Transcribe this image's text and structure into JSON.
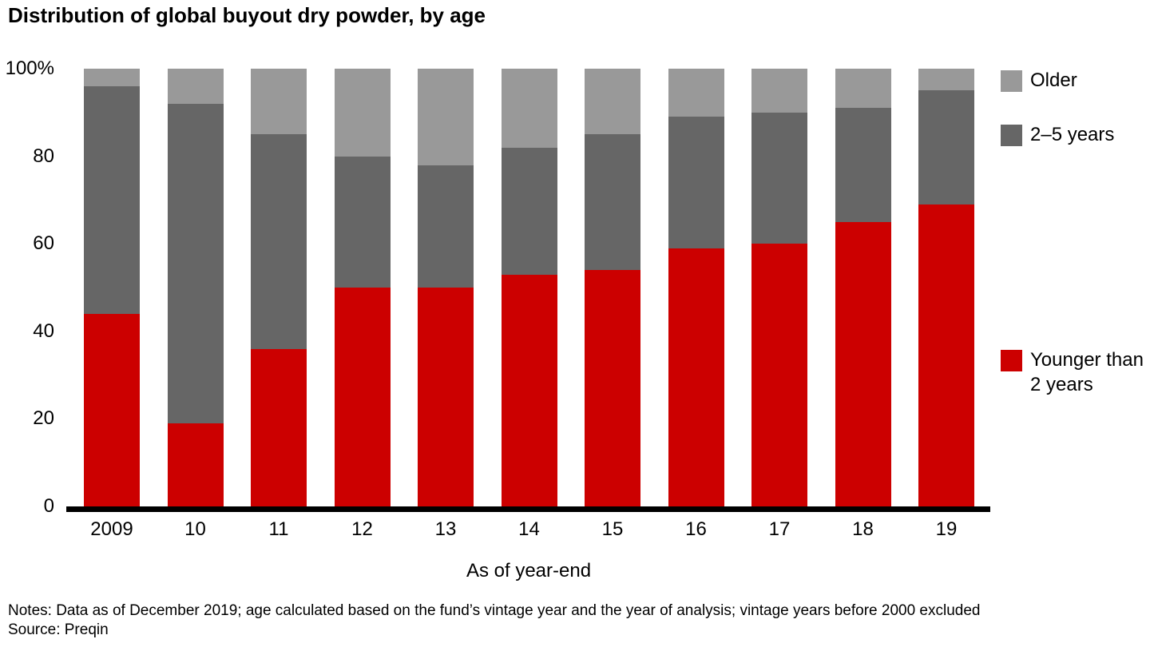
{
  "title": "Distribution of global buyout dry powder, by age",
  "chart_data": {
    "type": "bar",
    "stacked": true,
    "title": "Distribution of global buyout dry powder, by age",
    "xlabel": "As of year-end",
    "ylabel": "",
    "ylim": [
      0,
      100
    ],
    "grid": false,
    "legend_position": "right",
    "categories": [
      "2009",
      "10",
      "11",
      "12",
      "13",
      "14",
      "15",
      "16",
      "17",
      "18",
      "19"
    ],
    "series": [
      {
        "name": "Younger than 2 years",
        "color": "#cc0000",
        "values": [
          44,
          19,
          36,
          50,
          50,
          53,
          54,
          59,
          60,
          65,
          69
        ]
      },
      {
        "name": "2–5 years",
        "color": "#666666",
        "values": [
          52,
          73,
          49,
          30,
          28,
          29,
          31,
          30,
          30,
          26,
          26
        ]
      },
      {
        "name": "Older",
        "color": "#999999",
        "values": [
          4,
          8,
          15,
          20,
          22,
          18,
          15,
          11,
          10,
          9,
          5
        ]
      }
    ],
    "yticks": [
      {
        "label": "100%",
        "value": 100
      },
      {
        "label": "80",
        "value": 80
      },
      {
        "label": "60",
        "value": 60
      },
      {
        "label": "40",
        "value": 40
      },
      {
        "label": "20",
        "value": 20
      },
      {
        "label": "0",
        "value": 0
      }
    ]
  },
  "legend": {
    "older_label": "Older",
    "mid_label": "2–5 years",
    "younger_label": "Younger than 2 years"
  },
  "axis": {
    "x_caption": "As of year-end"
  },
  "footer": {
    "notes": "Notes: Data as of December 2019; age calculated based on the fund’s vintage year and the year of analysis; vintage years before 2000 excluded",
    "source": "Source: Preqin"
  },
  "colors": {
    "younger": "#cc0000",
    "mid": "#666666",
    "older": "#999999",
    "axis_line": "#000000",
    "text": "#000000"
  }
}
